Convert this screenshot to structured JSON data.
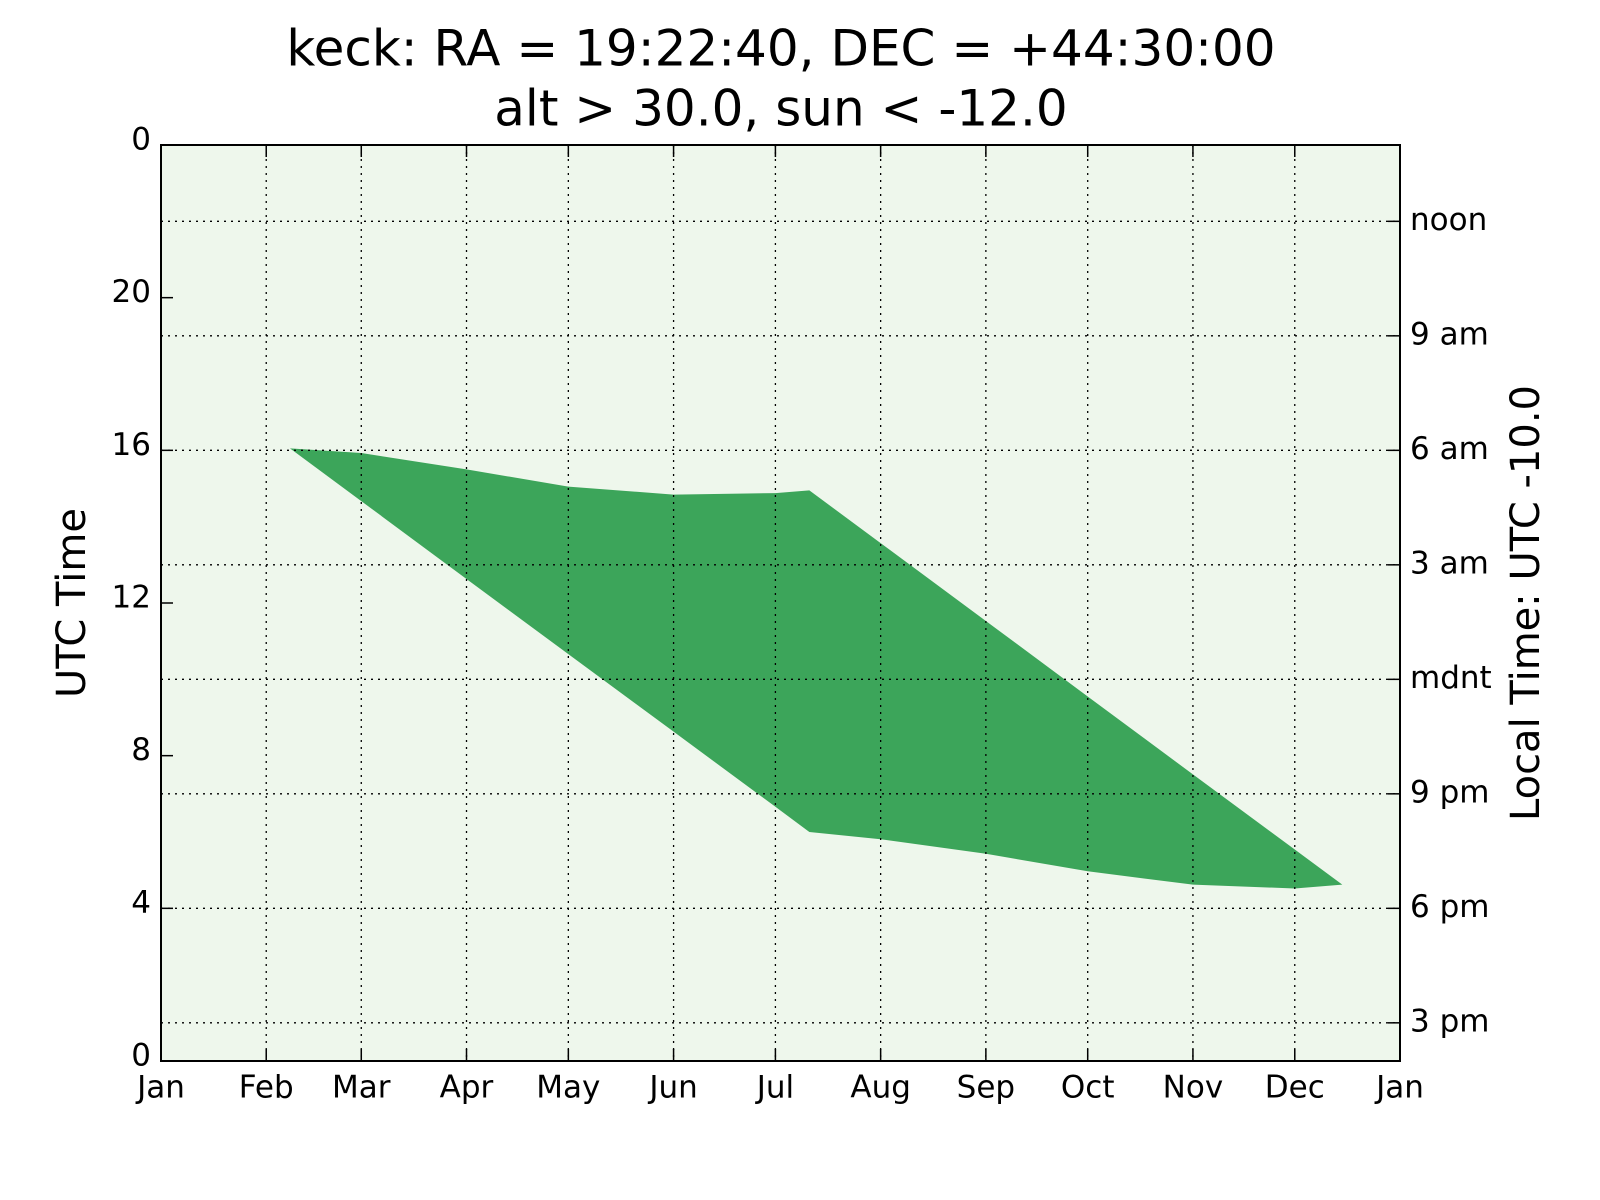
{
  "chart_data": {
    "type": "fill_between",
    "title": "keck: RA = 19:22:40, DEC = +44:30:00",
    "subtitle": "alt > 30.0, sun < -12.0",
    "ylabel": "UTC Time",
    "y2label": "Local Time: UTC -10.0",
    "x": [
      38,
      59,
      90,
      120,
      151,
      181,
      191,
      212,
      243,
      273,
      304,
      334,
      348
    ],
    "upper": [
      16.05,
      15.93,
      15.5,
      15.05,
      14.84,
      14.88,
      14.95,
      13.57,
      11.53,
      9.55,
      7.51,
      5.54,
      4.62
    ],
    "lower": [
      16.05,
      14.67,
      12.63,
      10.66,
      8.63,
      6.66,
      6.0,
      5.81,
      5.43,
      4.97,
      4.62,
      4.52,
      4.62
    ],
    "color": "#3ca55a",
    "background": "#eef7ec",
    "xlim": [
      0,
      365
    ],
    "xticks": [
      {
        "value": 0,
        "label": "Jan"
      },
      {
        "value": 31,
        "label": "Feb"
      },
      {
        "value": 59,
        "label": "Mar"
      },
      {
        "value": 90,
        "label": "Apr"
      },
      {
        "value": 120,
        "label": "May"
      },
      {
        "value": 151,
        "label": "Jun"
      },
      {
        "value": 181,
        "label": "Jul"
      },
      {
        "value": 212,
        "label": "Aug"
      },
      {
        "value": 243,
        "label": "Sep"
      },
      {
        "value": 273,
        "label": "Oct"
      },
      {
        "value": 304,
        "label": "Nov"
      },
      {
        "value": 334,
        "label": "Dec"
      },
      {
        "value": 365,
        "label": "Jan"
      }
    ],
    "ylim": [
      0,
      24
    ],
    "yticks": [
      {
        "value": 24,
        "label": "0"
      },
      20,
      16,
      12,
      8,
      4,
      0
    ],
    "y2lim": [
      0,
      24
    ],
    "y2ticks": [
      {
        "value": 22,
        "label": "noon"
      },
      {
        "value": 19,
        "label": "9 am"
      },
      {
        "value": 16,
        "label": "6 am"
      },
      {
        "value": 13,
        "label": "3 am"
      },
      {
        "value": 10,
        "label": "mdnt"
      },
      {
        "value": 7,
        "label": "9 pm"
      },
      {
        "value": 4,
        "label": "6 pm"
      },
      {
        "value": 1,
        "label": "3 pm"
      }
    ],
    "grid": true
  }
}
